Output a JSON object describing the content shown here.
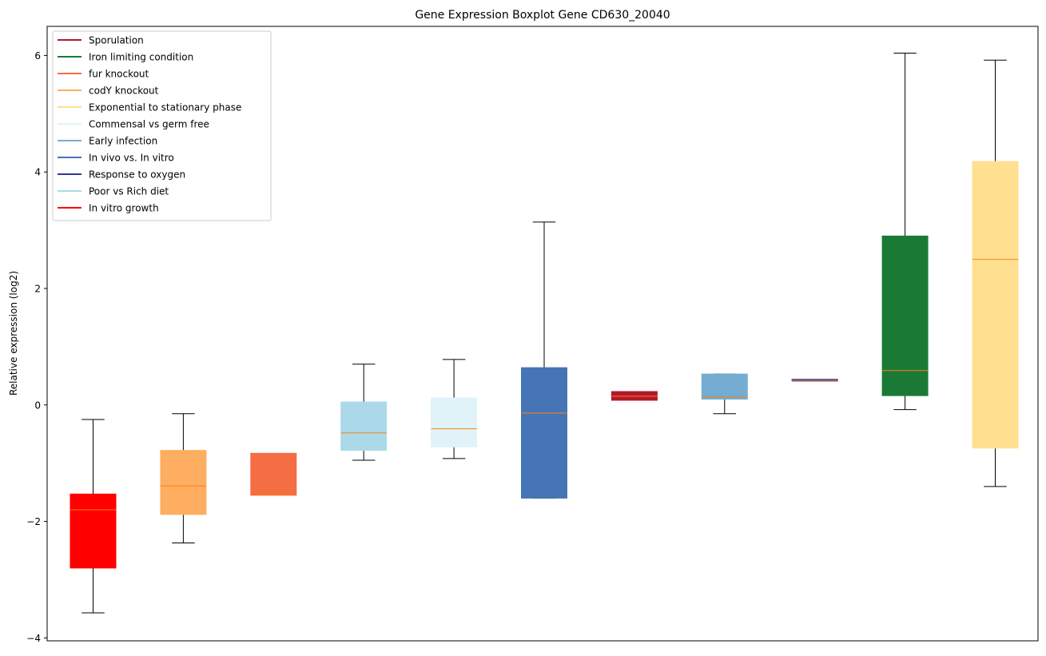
{
  "chart_data": {
    "type": "boxplot",
    "title": "Gene Expression Boxplot Gene CD630_20040",
    "xlabel": "",
    "ylabel": "Relative expression (log2)",
    "ylim": [
      -4.05,
      6.5
    ],
    "yticks": [
      -4,
      -2,
      0,
      2,
      4,
      6
    ],
    "ytick_labels": [
      "−4",
      "−2",
      "0",
      "2",
      "4",
      "6"
    ],
    "grid": false,
    "legend_position": "top-left",
    "median_color": "#ff7f0e",
    "legend": [
      {
        "label": "Sporulation",
        "color": "#b2182b"
      },
      {
        "label": "Iron limiting condition",
        "color": "#1a7a35"
      },
      {
        "label": "fur knockout",
        "color": "#f46d43"
      },
      {
        "label": "codY knockout",
        "color": "#fdae61"
      },
      {
        "label": "Exponential to stationary phase",
        "color": "#fee090"
      },
      {
        "label": "Commensal vs germ free",
        "color": "#e0f3f8"
      },
      {
        "label": "Early infection",
        "color": "#74add1"
      },
      {
        "label": "In vivo vs. In vitro",
        "color": "#4575b4"
      },
      {
        "label": "Response to oxygen",
        "color": "#313695"
      },
      {
        "label": "Poor vs Rich diet",
        "color": "#abd9e9"
      },
      {
        "label": "In vitro growth",
        "color": "#ff0000"
      }
    ],
    "boxes": [
      {
        "condition": "In vitro growth",
        "color": "#ff0000",
        "whisker_low": -3.57,
        "q1": -2.8,
        "median": -1.8,
        "q3": -1.53,
        "whisker_high": -0.25,
        "whiskers_visible": true
      },
      {
        "condition": "codY knockout",
        "color": "#fdae61",
        "whisker_low": -2.37,
        "q1": -1.88,
        "median": -1.39,
        "q3": -0.78,
        "whisker_high": -0.15,
        "whiskers_visible": true
      },
      {
        "condition": "fur knockout",
        "color": "#f46d43",
        "whisker_low": -1.55,
        "q1": -1.55,
        "median": -1.55,
        "q3": -0.83,
        "whisker_high": -0.83,
        "whiskers_visible": false
      },
      {
        "condition": "Poor vs Rich diet",
        "color": "#abd9e9",
        "whisker_low": -0.95,
        "q1": -0.78,
        "median": -0.48,
        "q3": 0.05,
        "whisker_high": 0.7,
        "whiskers_visible": true
      },
      {
        "condition": "Commensal vs germ free",
        "color": "#e0f3f8",
        "whisker_low": -0.92,
        "q1": -0.72,
        "median": -0.41,
        "q3": 0.12,
        "whisker_high": 0.78,
        "whiskers_visible": true
      },
      {
        "condition": "In vivo vs. In vitro",
        "color": "#4575b4",
        "whisker_low": -1.6,
        "q1": -1.6,
        "median": -0.14,
        "q3": 0.64,
        "whisker_high": 3.14,
        "whiskers_visible": true
      },
      {
        "condition": "Sporulation",
        "color": "#b2182b",
        "whisker_low": 0.08,
        "q1": 0.08,
        "median": 0.15,
        "q3": 0.23,
        "whisker_high": 0.23,
        "whiskers_visible": false
      },
      {
        "condition": "Early infection",
        "color": "#74add1",
        "whisker_low": -0.15,
        "q1": 0.1,
        "median": 0.14,
        "q3": 0.53,
        "whisker_high": 0.53,
        "whiskers_visible": true
      },
      {
        "condition": "Response to oxygen",
        "color": "#313695",
        "whisker_low": 0.41,
        "q1": 0.41,
        "median": 0.42,
        "q3": 0.44,
        "whisker_high": 0.44,
        "whiskers_visible": false
      },
      {
        "condition": "Iron limiting condition",
        "color": "#1a7a35",
        "whisker_low": -0.08,
        "q1": 0.16,
        "median": 0.59,
        "q3": 2.9,
        "whisker_high": 6.04,
        "whiskers_visible": true
      },
      {
        "condition": "Exponential to stationary phase",
        "color": "#fee090",
        "whisker_low": -1.4,
        "q1": -0.74,
        "median": 2.5,
        "q3": 4.18,
        "whisker_high": 5.92,
        "whiskers_visible": true
      }
    ]
  }
}
